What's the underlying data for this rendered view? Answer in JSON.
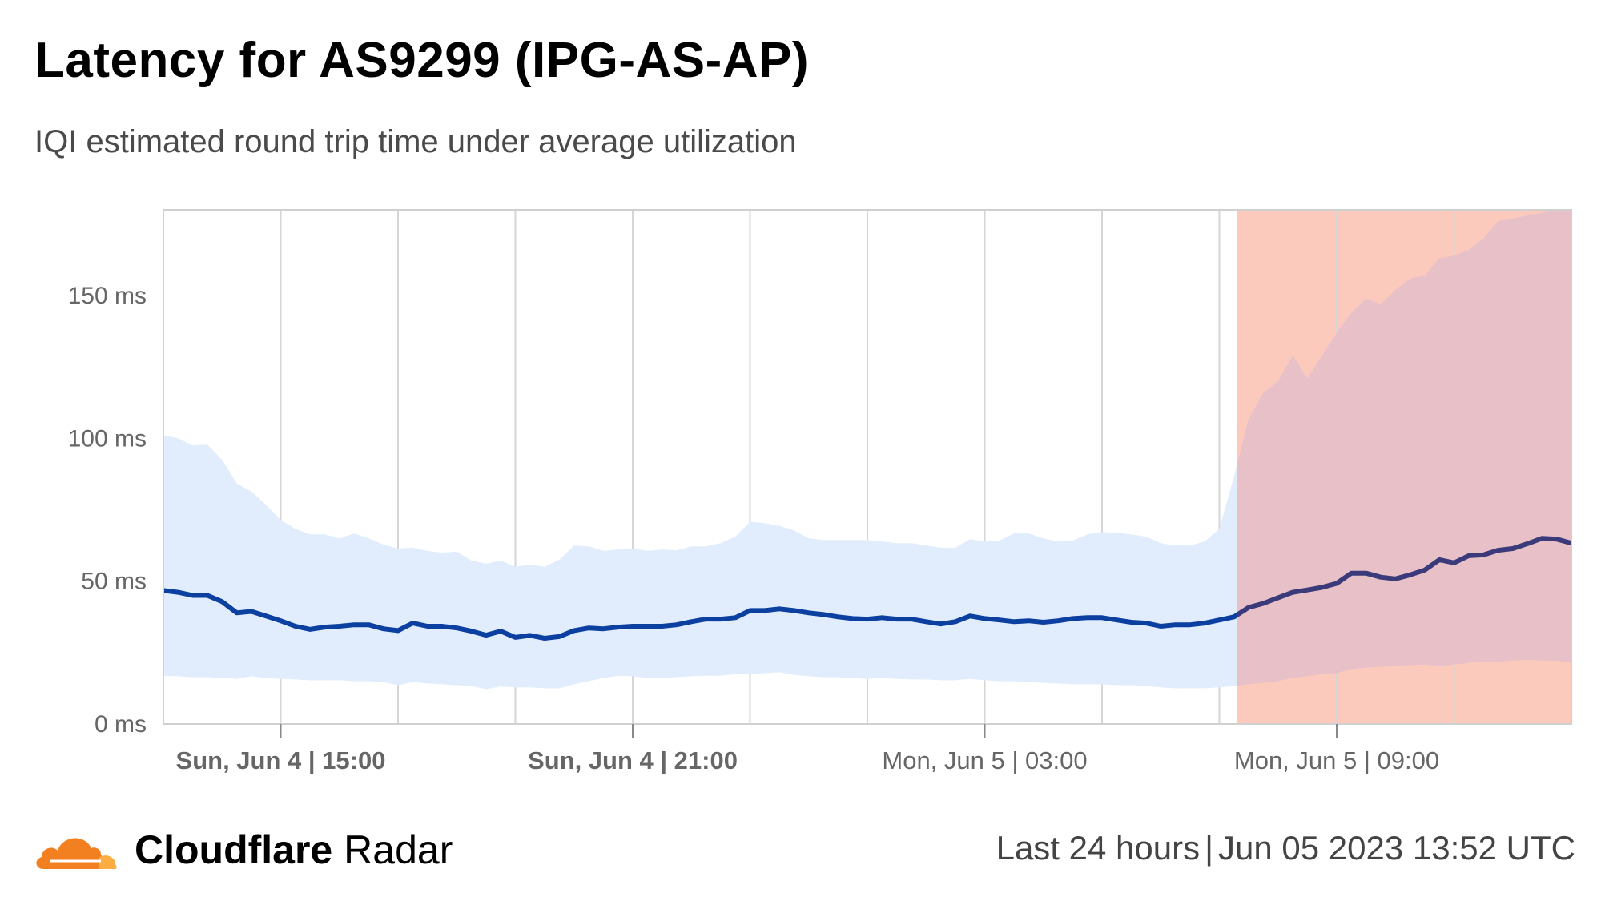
{
  "title": "Latency for AS9299 (IPG-AS-AP)",
  "subtitle": "IQI estimated round trip time under average utilization",
  "footer": {
    "brand_bold": "Cloudflare",
    "brand_light": "Radar",
    "period": "Last 24 hours",
    "timestamp": "Jun 05 2023 13:52 UTC"
  },
  "colors": {
    "line": "#0b3fa0",
    "band": "#e1edfc",
    "anomaly": "#fccabc",
    "anomaly_band": "#e8c1c8",
    "anomaly_line": "#3b3a7a",
    "grid": "#d6d6d6",
    "logo_orange": "#f38020",
    "logo_light": "#fbad41"
  },
  "chart_data": {
    "type": "area",
    "ylim": [
      0,
      180
    ],
    "y_ticks": [
      0,
      50,
      100,
      150
    ],
    "y_tick_labels": [
      "0 ms",
      "50 ms",
      "100 ms",
      "150 ms"
    ],
    "x_tick_labels": [
      {
        "hour": 2,
        "label": "Sun, Jun 4 | 15:00",
        "bold": true
      },
      {
        "hour": 8,
        "label": "Sun, Jun 4 | 21:00",
        "bold": true
      },
      {
        "hour": 14,
        "label": "Mon, Jun 5 | 03:00",
        "bold": false
      },
      {
        "hour": 20,
        "label": "Mon, Jun 5 | 09:00",
        "bold": false
      }
    ],
    "x_hours": [
      0,
      0.25,
      0.5,
      0.75,
      1,
      1.25,
      1.5,
      1.75,
      2,
      2.25,
      2.5,
      2.75,
      3,
      3.25,
      3.5,
      3.75,
      4,
      4.25,
      4.5,
      4.75,
      5,
      5.25,
      5.5,
      5.75,
      6,
      6.25,
      6.5,
      6.75,
      7,
      7.25,
      7.5,
      7.75,
      8,
      8.25,
      8.5,
      8.75,
      9,
      9.25,
      9.5,
      9.75,
      10,
      10.25,
      10.5,
      10.75,
      11,
      11.25,
      11.5,
      11.75,
      12,
      12.25,
      12.5,
      12.75,
      13,
      13.25,
      13.5,
      13.75,
      14,
      14.25,
      14.5,
      14.75,
      15,
      15.25,
      15.5,
      15.75,
      16,
      16.25,
      16.5,
      16.75,
      17,
      17.25,
      17.5,
      17.75,
      18,
      18.25,
      18.5,
      18.75,
      19,
      19.25,
      19.5,
      19.75,
      20,
      20.25,
      20.5,
      20.75,
      21,
      21.25,
      21.5,
      21.75,
      22,
      22.25,
      22.5,
      22.75,
      23,
      23.25,
      23.5,
      23.75,
      24
    ],
    "anomaly_start_hour": 18.3,
    "series": [
      {
        "name": "median",
        "values": [
          46.7,
          46.1,
          45.0,
          45.0,
          42.8,
          38.9,
          39.4,
          37.8,
          36.1,
          34.2,
          33.1,
          33.9,
          34.2,
          34.7,
          34.7,
          33.3,
          32.7,
          35.3,
          34.2,
          34.2,
          33.6,
          32.5,
          31.1,
          32.5,
          30.3,
          31.0,
          30.0,
          30.6,
          32.7,
          33.6,
          33.3,
          33.9,
          34.2,
          34.2,
          34.2,
          34.7,
          35.8,
          36.7,
          36.7,
          37.2,
          39.7,
          39.7,
          40.3,
          39.7,
          38.9,
          38.3,
          37.5,
          36.9,
          36.7,
          37.2,
          36.7,
          36.7,
          35.8,
          35.0,
          35.8,
          37.8,
          36.9,
          36.4,
          35.8,
          36.1,
          35.6,
          36.1,
          36.9,
          37.2,
          37.2,
          36.4,
          35.6,
          35.3,
          34.2,
          34.7,
          34.7,
          35.3,
          36.4,
          37.5,
          40.8,
          42.2,
          44.2,
          46.1,
          46.9,
          47.8,
          49.2,
          52.8,
          52.8,
          51.4,
          50.8,
          52.2,
          53.9,
          57.5,
          56.4,
          58.9,
          59.2,
          60.8,
          61.4,
          63.1,
          65.0,
          64.7,
          63.3
        ]
      },
      {
        "name": "upper",
        "values": [
          101,
          100,
          97.5,
          97.8,
          92.5,
          84.2,
          81.4,
          76.7,
          71.4,
          68.3,
          66.4,
          66.4,
          65.0,
          66.7,
          65.0,
          62.8,
          61.4,
          61.7,
          60.6,
          60.0,
          60.3,
          57.2,
          56.1,
          57.2,
          55.0,
          55.8,
          55.0,
          57.5,
          62.5,
          62.2,
          60.6,
          61.1,
          61.4,
          60.6,
          61.1,
          60.8,
          62.2,
          62.2,
          63.3,
          65.6,
          70.8,
          70.3,
          69.4,
          67.8,
          65.0,
          64.4,
          64.4,
          64.4,
          64.4,
          63.9,
          63.3,
          63.3,
          62.5,
          61.7,
          61.7,
          64.7,
          63.9,
          64.2,
          66.7,
          66.7,
          65.0,
          63.9,
          64.2,
          66.4,
          67.2,
          66.9,
          66.4,
          65.6,
          63.3,
          62.5,
          62.5,
          63.9,
          68.3,
          86.7,
          107,
          116,
          120,
          129,
          121,
          129,
          137,
          144,
          149,
          147,
          152,
          156,
          157,
          163,
          164,
          166,
          170,
          176,
          177,
          178,
          179,
          180,
          180
        ]
      },
      {
        "name": "lower",
        "values": [
          16.9,
          16.7,
          16.4,
          16.4,
          16.1,
          15.8,
          16.7,
          16.1,
          15.8,
          15.6,
          15.3,
          15.3,
          15.3,
          15.0,
          15.0,
          14.7,
          13.6,
          14.7,
          14.2,
          13.9,
          13.6,
          13.3,
          12.2,
          13.1,
          12.8,
          12.8,
          12.5,
          12.5,
          13.9,
          15.0,
          16.1,
          16.9,
          16.7,
          16.1,
          16.1,
          16.4,
          16.7,
          16.9,
          16.9,
          17.5,
          17.5,
          17.8,
          18.1,
          17.2,
          16.7,
          16.4,
          16.4,
          16.1,
          15.8,
          16.1,
          15.8,
          15.6,
          15.6,
          15.3,
          15.3,
          15.8,
          15.3,
          15.0,
          15.0,
          14.7,
          14.4,
          14.2,
          13.9,
          13.9,
          13.9,
          13.6,
          13.6,
          13.3,
          12.8,
          12.5,
          12.5,
          12.5,
          12.8,
          13.3,
          13.9,
          14.4,
          15.0,
          16.1,
          16.7,
          17.5,
          17.8,
          19.2,
          19.7,
          20.0,
          20.3,
          20.6,
          20.8,
          20.3,
          20.8,
          21.4,
          21.7,
          21.7,
          22.2,
          22.5,
          22.2,
          22.2,
          21.4
        ]
      }
    ],
    "grid": true
  }
}
